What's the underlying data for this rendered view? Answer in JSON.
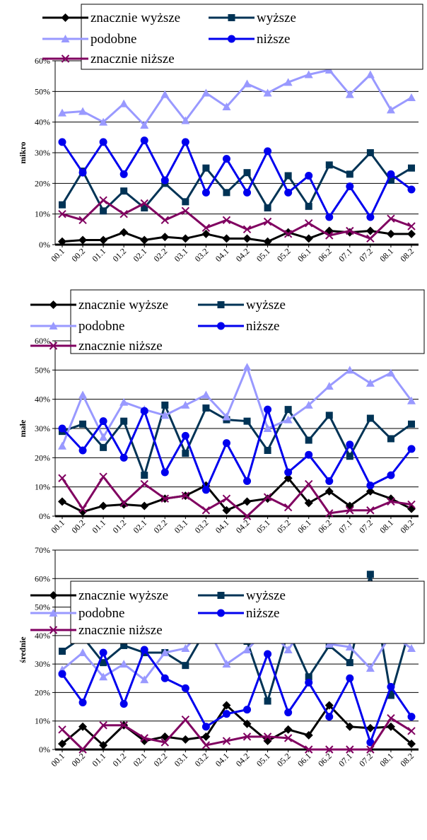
{
  "chart_data": [
    {
      "type": "line",
      "ylabel": "mikro",
      "ylim": [
        0,
        60
      ],
      "yticks": [
        "0%",
        "10%",
        "20%",
        "30%",
        "40%",
        "50%",
        "60%"
      ],
      "categories": [
        "00.1",
        "00.2",
        "01.1",
        "01.2",
        "02.1",
        "02.2",
        "03.1",
        "03.2",
        "04.1",
        "04.2",
        "05.1",
        "05.2",
        "06.1",
        "06.2",
        "07.1",
        "07.2",
        "08.1",
        "08.2"
      ],
      "grid": true,
      "legend_position": "top",
      "series": [
        {
          "name": "znacznie wyższe",
          "color": "#000000",
          "marker": "diamond",
          "values": [
            1,
            1.5,
            1.5,
            4,
            1.5,
            2.5,
            2,
            3.5,
            2,
            2,
            1,
            4,
            2,
            4.5,
            4,
            4.5,
            3.5,
            3.5
          ]
        },
        {
          "name": "wyższe",
          "color": "#003355",
          "marker": "square",
          "values": [
            13,
            24,
            11,
            17.5,
            12,
            20,
            14,
            25,
            17,
            23.5,
            12,
            22.5,
            12.5,
            26,
            23,
            30,
            21,
            25
          ]
        },
        {
          "name": "podobne",
          "color": "#9999ff",
          "marker": "triangle",
          "values": [
            43,
            43.5,
            40,
            46,
            39,
            49,
            40.5,
            49.5,
            45,
            52.5,
            49.5,
            53,
            55.5,
            57,
            49,
            55.5,
            44,
            48
          ]
        },
        {
          "name": "niższe",
          "color": "#0000ee",
          "marker": "circle",
          "values": [
            33.5,
            23.5,
            33.5,
            23,
            34,
            21,
            33.5,
            17,
            28,
            17,
            30.5,
            17,
            22.5,
            9,
            19,
            9,
            23,
            18
          ]
        },
        {
          "name": "znacznie niższe",
          "color": "#800060",
          "marker": "x",
          "values": [
            10,
            8,
            14.5,
            10,
            13.5,
            8,
            11,
            5.5,
            8,
            5,
            7.5,
            3.5,
            7,
            3,
            4.5,
            2,
            8.5,
            6
          ]
        }
      ]
    },
    {
      "type": "line",
      "ylabel": "małe",
      "ylim": [
        0,
        60
      ],
      "yticks": [
        "0%",
        "10%",
        "20%",
        "30%",
        "40%",
        "50%",
        "60%"
      ],
      "categories": [
        "00.1",
        "00.2",
        "01.1",
        "01.2",
        "02.1",
        "02.2",
        "03.1",
        "03.2",
        "04.1",
        "04.2",
        "05.1",
        "05.2",
        "06.1",
        "06.2",
        "07.1",
        "07.2",
        "08.1",
        "08.2"
      ],
      "grid": true,
      "legend_position": "top",
      "series": [
        {
          "name": "znacznie wyższe",
          "color": "#000000",
          "marker": "diamond",
          "values": [
            5,
            1.5,
            3.5,
            4,
            3.5,
            6,
            7,
            10.5,
            2,
            5,
            6,
            13,
            4.5,
            8.5,
            3.5,
            8.5,
            6,
            2.5
          ]
        },
        {
          "name": "wyższe",
          "color": "#003355",
          "marker": "square",
          "values": [
            29,
            31.5,
            23.5,
            32.5,
            14,
            38,
            21.5,
            37,
            33,
            32.5,
            22.5,
            36.5,
            26,
            34.5,
            20.5,
            33.5,
            26.5,
            31.5
          ]
        },
        {
          "name": "podobne",
          "color": "#9999ff",
          "marker": "triangle",
          "values": [
            24,
            41.5,
            27,
            39,
            36.5,
            34.5,
            38,
            41.5,
            34,
            51,
            30,
            33,
            38,
            44.5,
            50,
            45.5,
            49,
            39.5
          ]
        },
        {
          "name": "niższe",
          "color": "#0000ee",
          "marker": "circle",
          "values": [
            30,
            22.5,
            32.5,
            20,
            36,
            15,
            27.5,
            9,
            25,
            12,
            36.5,
            15,
            21,
            12,
            24.5,
            10.5,
            14,
            23
          ]
        },
        {
          "name": "znacznie niższe",
          "color": "#800060",
          "marker": "x",
          "values": [
            13,
            2.5,
            13.5,
            4.5,
            11,
            6,
            7,
            2,
            6,
            0,
            6.5,
            3,
            11,
            1,
            2,
            2,
            5,
            4
          ]
        }
      ]
    },
    {
      "type": "line",
      "ylabel": "średnie",
      "ylim": [
        0,
        70
      ],
      "yticks": [
        "0%",
        "10%",
        "20%",
        "30%",
        "40%",
        "50%",
        "60%",
        "70%"
      ],
      "categories": [
        "00.1",
        "00.2",
        "01.1",
        "01.2",
        "02.1",
        "02.2",
        "03.1",
        "03.2",
        "04.1",
        "04.2",
        "05.1",
        "05.2",
        "06.1",
        "06.2",
        "07.1",
        "07.2",
        "08.1",
        "08.2"
      ],
      "grid": true,
      "legend_position": "top",
      "series": [
        {
          "name": "znacznie wyższe",
          "color": "#000000",
          "marker": "diamond",
          "values": [
            2,
            8,
            1.5,
            8.5,
            3,
            4.5,
            3.5,
            4.5,
            15.5,
            9,
            3,
            7,
            5,
            15.5,
            8,
            7.5,
            8,
            2
          ]
        },
        {
          "name": "wyższe",
          "color": "#003355",
          "marker": "square",
          "values": [
            34.5,
            39.5,
            30.5,
            36.5,
            34,
            34,
            29.5,
            42,
            39,
            38,
            17,
            41.5,
            25.5,
            36.5,
            30.5,
            61.5,
            19,
            44.5
          ]
        },
        {
          "name": "podobne",
          "color": "#9999ff",
          "marker": "triangle",
          "values": [
            28,
            34,
            25.5,
            30,
            24.5,
            34,
            35.5,
            43.5,
            30,
            35,
            42.5,
            35,
            45.5,
            37,
            36,
            28.5,
            40.5,
            35.5
          ]
        },
        {
          "name": "niższe",
          "color": "#0000ee",
          "marker": "circle",
          "values": [
            26.5,
            16.5,
            34,
            16,
            35,
            25,
            21.5,
            8,
            12.5,
            14,
            33.5,
            13,
            23.5,
            11.5,
            25,
            2.5,
            22,
            11.5
          ]
        },
        {
          "name": "znacznie niższe",
          "color": "#800060",
          "marker": "x",
          "values": [
            7,
            0,
            8.5,
            8.5,
            4,
            2.5,
            10.5,
            1.5,
            3,
            4.5,
            4.5,
            4,
            0,
            0,
            0,
            0,
            11,
            6.5
          ]
        }
      ]
    }
  ]
}
